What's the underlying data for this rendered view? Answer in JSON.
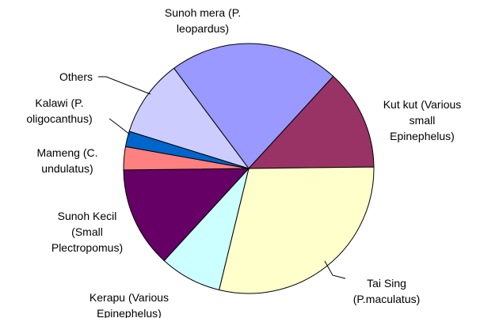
{
  "chart_data": {
    "type": "pie",
    "categories": [
      "Sunoh mera (P. leopardus)",
      "Kut kut (Various small Epinephelus)",
      "Tai Sing (P.maculatus)",
      "Kerapu (Various Epinephelus)",
      "Sunoh Kecil (Small Plectropomus)",
      "Mameng (C. undulatus)",
      "Kalawi (P. oligocanthus)",
      "Others"
    ],
    "values": [
      22,
      13,
      29,
      8,
      13,
      3,
      2,
      10
    ],
    "colors": [
      "#9999ff",
      "#993366",
      "#ffffcc",
      "#ccffff",
      "#660066",
      "#ff8080",
      "#0066cc",
      "#ccccff"
    ]
  }
}
